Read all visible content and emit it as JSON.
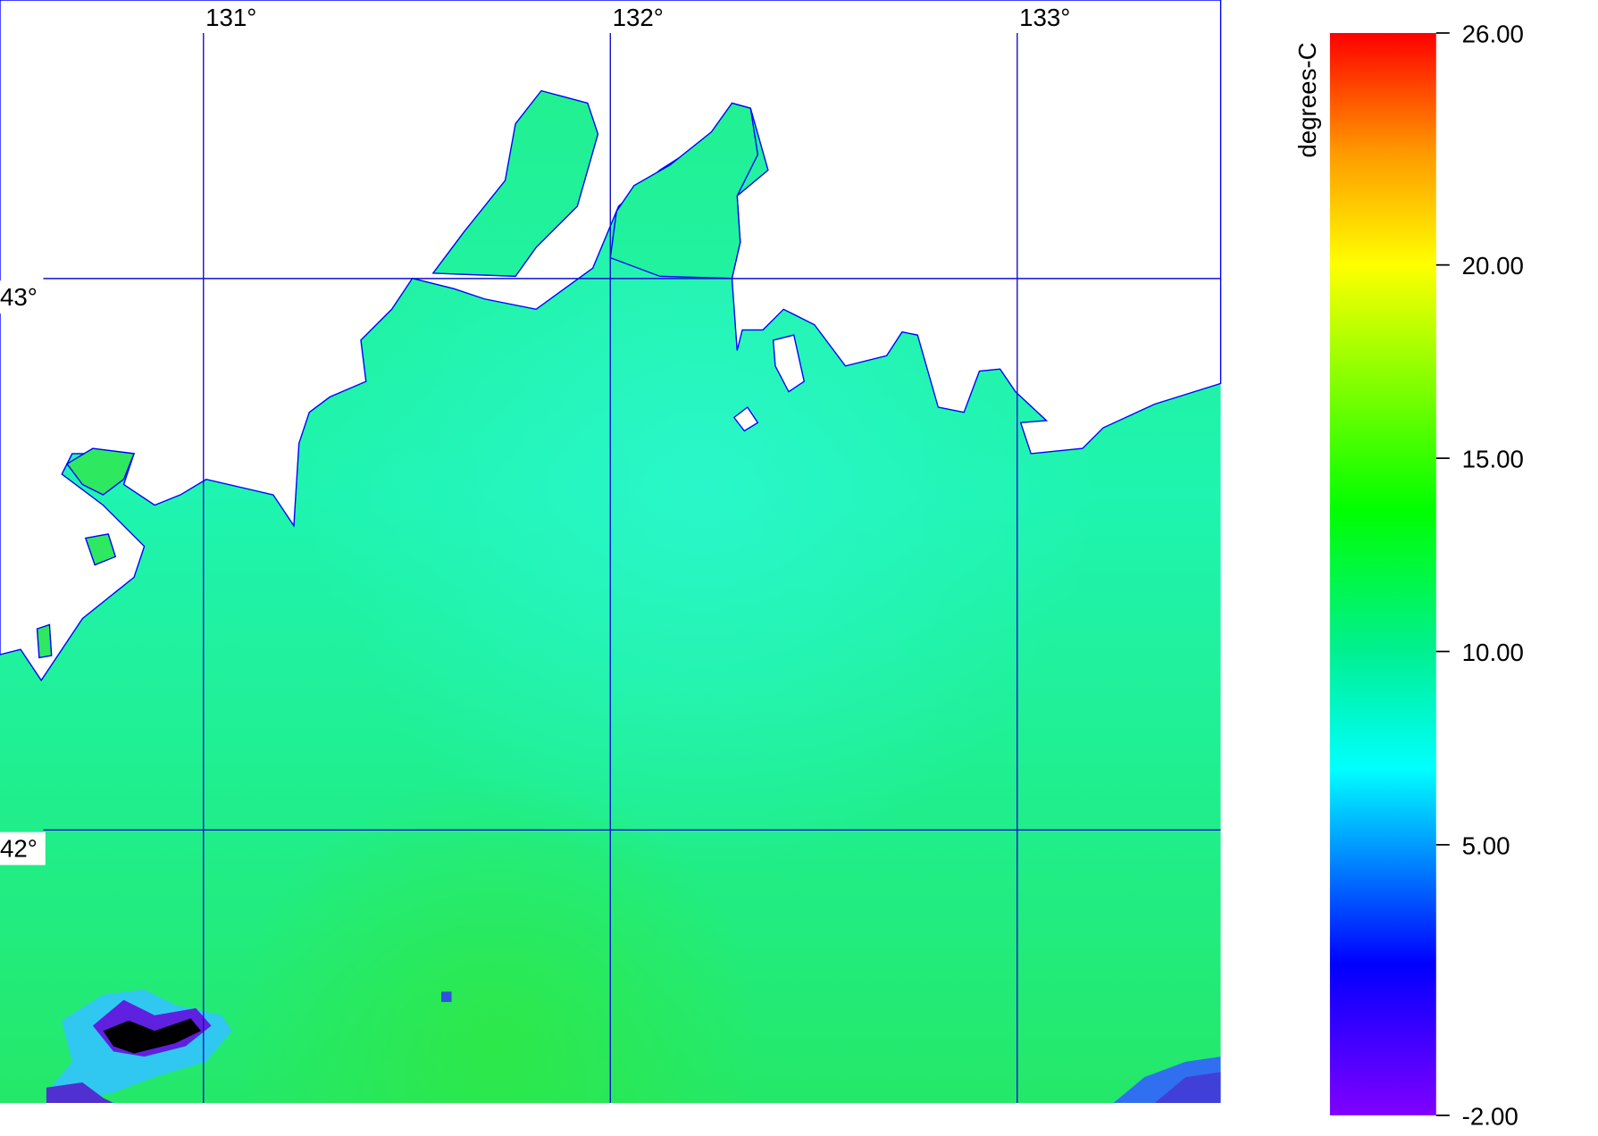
{
  "map": {
    "xlim": [
      130.5,
      133.5
    ],
    "ylim": [
      41.505,
      43.505
    ],
    "lon_ticks": [
      {
        "value": 131,
        "label": "131°"
      },
      {
        "value": 132,
        "label": "132°"
      },
      {
        "value": 133,
        "label": "133°"
      }
    ],
    "lat_ticks": [
      {
        "value": 43,
        "label": "43°"
      },
      {
        "value": 42,
        "label": "42°"
      }
    ]
  },
  "colorbar": {
    "label": "degrees-C",
    "lim": [
      -2,
      26
    ],
    "ticks": [
      {
        "value": 26,
        "label": "26.00"
      },
      {
        "value": 20,
        "label": "20.00"
      },
      {
        "value": 15,
        "label": "15.00"
      },
      {
        "value": 10,
        "label": "10.00"
      },
      {
        "value": 5,
        "label": "5.00"
      },
      {
        "value": -2,
        "label": "-2.00"
      }
    ]
  }
}
